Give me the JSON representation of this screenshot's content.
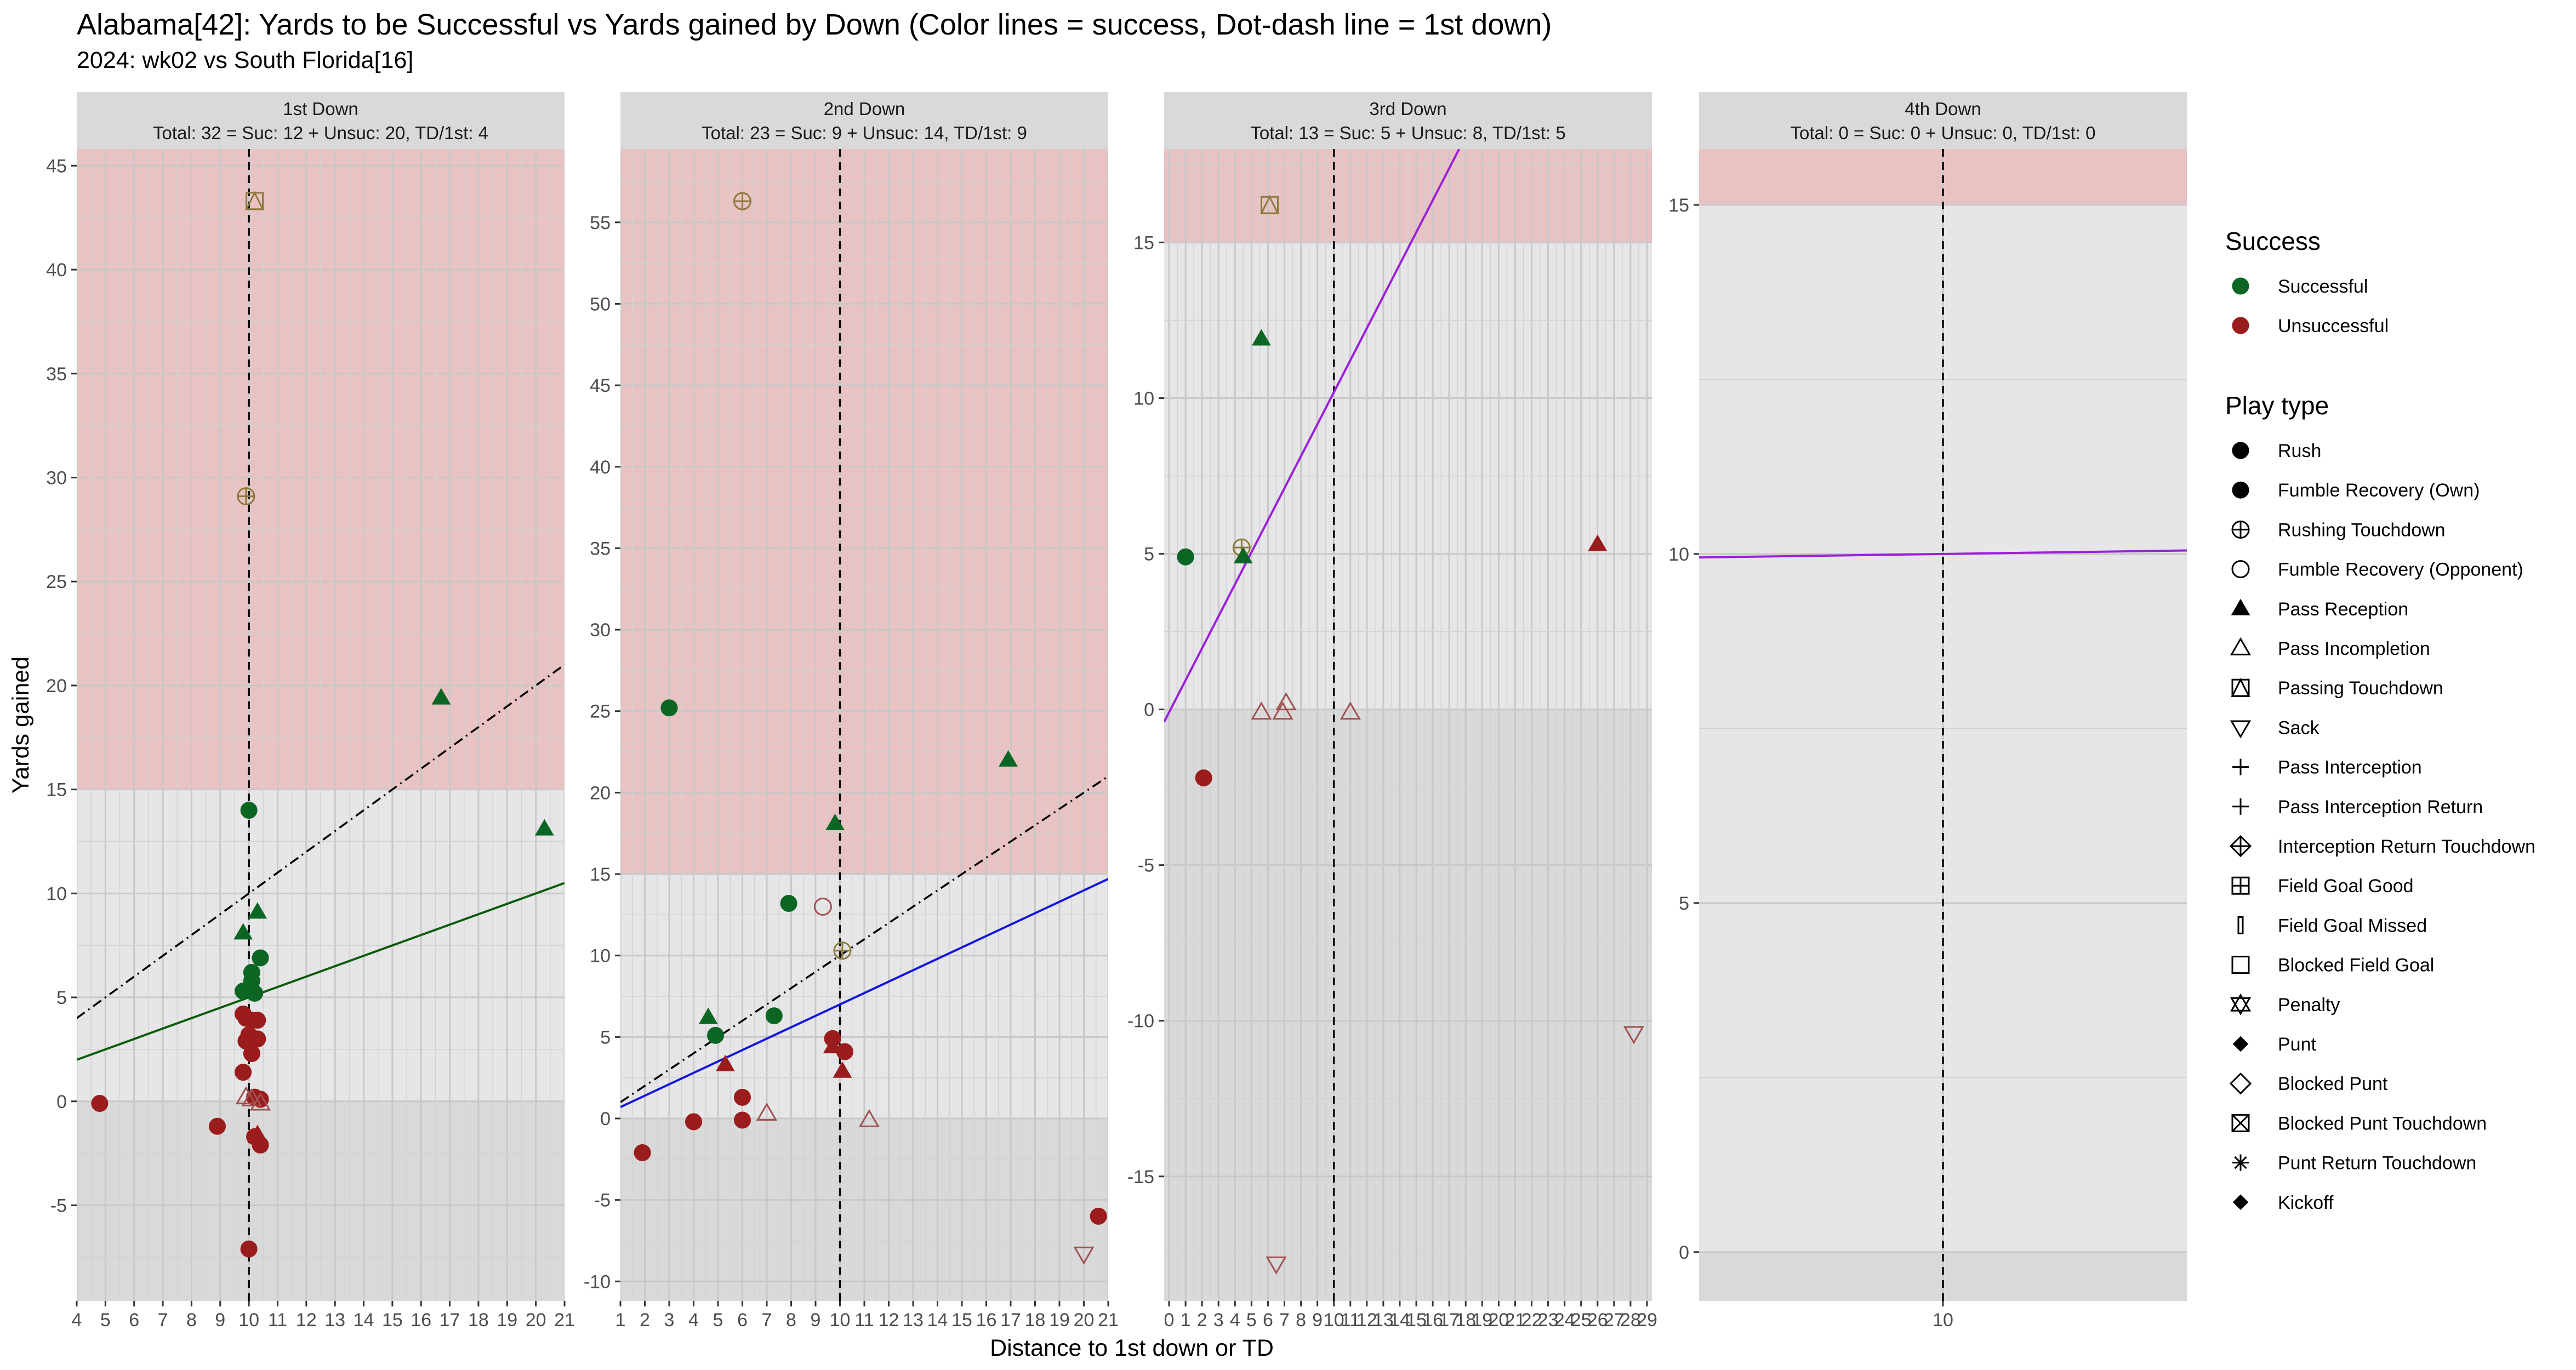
{
  "title": "Alabama[42]: Yards to be Successful vs Yards gained by Down  (Color lines = success, Dot-dash line = 1st down)",
  "subtitle": "2024: wk02 vs South Florida[16]",
  "colors": {
    "successful": "#0b6623",
    "unsuccessful": "#9b1c1c",
    "touchdown_marker": "#8a7a3a",
    "line_1st": "#0b5d0b",
    "line_2nd": "#1414e0",
    "line_3rd": "#9b1fd9",
    "line_4th": "#9b1fd9"
  },
  "chart_data": {
    "type": "scatter",
    "xlabel": "Distance to 1st down or TD",
    "ylabel": "Yards gained",
    "legend": {
      "placement": "right",
      "success_title": "Success",
      "success": [
        {
          "label": "Successful",
          "color": "#0b6623"
        },
        {
          "label": "Unsuccessful",
          "color": "#9b1c1c"
        }
      ],
      "playtype_title": "Play type",
      "playtypes": [
        {
          "label": "Rush",
          "shape": "circle-filled"
        },
        {
          "label": "Fumble Recovery (Own)",
          "shape": "circle-filled"
        },
        {
          "label": "Rushing Touchdown",
          "shape": "circle-plus"
        },
        {
          "label": "Fumble Recovery (Opponent)",
          "shape": "circle-open"
        },
        {
          "label": "Pass Reception",
          "shape": "triangle-filled"
        },
        {
          "label": "Pass Incompletion",
          "shape": "triangle-open"
        },
        {
          "label": "Passing Touchdown",
          "shape": "square-triangle"
        },
        {
          "label": "Sack",
          "shape": "triangle-down-open"
        },
        {
          "label": "Pass Interception",
          "shape": "plus"
        },
        {
          "label": "Pass Interception Return",
          "shape": "plus"
        },
        {
          "label": "Interception Return Touchdown",
          "shape": "diamond-plus"
        },
        {
          "label": "Field Goal Good",
          "shape": "square-plus"
        },
        {
          "label": "Field Goal Missed",
          "shape": "bar-open"
        },
        {
          "label": "Blocked Field Goal",
          "shape": "square-open"
        },
        {
          "label": "Penalty",
          "shape": "star-david"
        },
        {
          "label": "Punt",
          "shape": "diamond-filled"
        },
        {
          "label": "Blocked Punt",
          "shape": "diamond-open"
        },
        {
          "label": "Blocked Punt Touchdown",
          "shape": "square-x"
        },
        {
          "label": "Punt Return Touchdown",
          "shape": "asterisk"
        },
        {
          "label": "Kickoff",
          "shape": "diamond-filled"
        }
      ]
    },
    "panels": [
      {
        "strip_title": "1st Down",
        "strip_summary": "Total: 32 = Suc: 12 + Unsuc: 20, TD/1st: 4",
        "xlim": [
          4,
          21
        ],
        "ylim": [
          -9.6,
          45.8
        ],
        "xticks": [
          4,
          5,
          6,
          7,
          8,
          9,
          10,
          11,
          12,
          13,
          14,
          15,
          16,
          17,
          18,
          19,
          20,
          21
        ],
        "yticks": [
          -5,
          0,
          5,
          10,
          15,
          20,
          25,
          30,
          35,
          40,
          45
        ],
        "first_down_line_x": 10,
        "red_band_min": 15,
        "success_line": {
          "color": "#0b5d0b",
          "points": [
            [
              4,
              2
            ],
            [
              21,
              10.5
            ]
          ]
        },
        "dotdash_line": {
          "points": [
            [
              4,
              4
            ],
            [
              21,
              21
            ]
          ]
        },
        "points": [
          {
            "x": 4.8,
            "y": -0.1,
            "success": false,
            "play": "Rush"
          },
          {
            "x": 8.9,
            "y": -1.2,
            "success": false,
            "play": "Rush"
          },
          {
            "x": 10.0,
            "y": 14.0,
            "success": true,
            "play": "Rush"
          },
          {
            "x": 10.3,
            "y": 9.1,
            "success": true,
            "play": "Pass Reception"
          },
          {
            "x": 9.8,
            "y": 8.1,
            "success": true,
            "play": "Pass Reception"
          },
          {
            "x": 10.4,
            "y": 6.9,
            "success": true,
            "play": "Rush"
          },
          {
            "x": 10.1,
            "y": 6.2,
            "success": true,
            "play": "Rush"
          },
          {
            "x": 10.1,
            "y": 5.8,
            "success": true,
            "play": "Rush"
          },
          {
            "x": 9.8,
            "y": 5.3,
            "success": true,
            "play": "Rush"
          },
          {
            "x": 10.2,
            "y": 5.2,
            "success": true,
            "play": "Rush"
          },
          {
            "x": 16.7,
            "y": 19.4,
            "success": true,
            "play": "Pass Reception"
          },
          {
            "x": 20.3,
            "y": 13.1,
            "success": true,
            "play": "Pass Reception"
          },
          {
            "x": 9.9,
            "y": 29.1,
            "success": true,
            "play": "Rushing Touchdown"
          },
          {
            "x": 10.2,
            "y": 43.3,
            "success": true,
            "play": "Passing Touchdown"
          },
          {
            "x": 9.8,
            "y": 4.2,
            "success": false,
            "play": "Rush"
          },
          {
            "x": 9.9,
            "y": 4.0,
            "success": false,
            "play": "Rush"
          },
          {
            "x": 10.1,
            "y": 3.9,
            "success": false,
            "play": "Rush"
          },
          {
            "x": 10.3,
            "y": 3.9,
            "success": false,
            "play": "Rush"
          },
          {
            "x": 10.0,
            "y": 3.2,
            "success": false,
            "play": "Rush"
          },
          {
            "x": 9.9,
            "y": 2.9,
            "success": false,
            "play": "Rush"
          },
          {
            "x": 10.3,
            "y": 3.0,
            "success": false,
            "play": "Rush"
          },
          {
            "x": 10.1,
            "y": 2.3,
            "success": false,
            "play": "Rush"
          },
          {
            "x": 9.8,
            "y": 1.4,
            "success": false,
            "play": "Rush"
          },
          {
            "x": 10.2,
            "y": 0.2,
            "success": false,
            "play": "Rush"
          },
          {
            "x": 10.4,
            "y": 0.1,
            "success": false,
            "play": "Rush"
          },
          {
            "x": 9.9,
            "y": 0.2,
            "success": false,
            "play": "Pass Incompletion"
          },
          {
            "x": 10.1,
            "y": 0.1,
            "success": false,
            "play": "Pass Incompletion"
          },
          {
            "x": 10.4,
            "y": -0.1,
            "success": false,
            "play": "Pass Incompletion"
          },
          {
            "x": 10.3,
            "y": -1.6,
            "success": false,
            "play": "Pass Reception"
          },
          {
            "x": 10.4,
            "y": -2.1,
            "success": false,
            "play": "Rush"
          },
          {
            "x": 10.0,
            "y": -7.1,
            "success": false,
            "play": "Rush"
          },
          {
            "x": 10.2,
            "y": -1.7,
            "success": false,
            "play": "Rush"
          }
        ]
      },
      {
        "strip_title": "2nd Down",
        "strip_summary": "Total: 23 = Suc: 9 + Unsuc: 14, TD/1st: 9",
        "xlim": [
          1,
          21
        ],
        "ylim": [
          -11.2,
          59.5
        ],
        "xticks": [
          1,
          2,
          3,
          4,
          5,
          6,
          7,
          8,
          9,
          10,
          11,
          12,
          13,
          14,
          15,
          16,
          17,
          18,
          19,
          20,
          21
        ],
        "yticks": [
          -10,
          -5,
          0,
          5,
          10,
          15,
          20,
          25,
          30,
          35,
          40,
          45,
          50,
          55
        ],
        "first_down_line_x": 10,
        "red_band_min": 15,
        "success_line": {
          "color": "#1414e0",
          "points": [
            [
              1,
              0.7
            ],
            [
              21,
              14.7
            ]
          ]
        },
        "dotdash_line": {
          "points": [
            [
              1,
              1
            ],
            [
              21,
              21
            ]
          ]
        },
        "points": [
          {
            "x": 3.0,
            "y": 25.2,
            "success": true,
            "play": "Rush"
          },
          {
            "x": 6.0,
            "y": 56.3,
            "success": true,
            "play": "Rushing Touchdown"
          },
          {
            "x": 16.9,
            "y": 22.0,
            "success": true,
            "play": "Pass Reception"
          },
          {
            "x": 9.8,
            "y": 18.1,
            "success": true,
            "play": "Pass Reception"
          },
          {
            "x": 7.9,
            "y": 13.2,
            "success": true,
            "play": "Rush"
          },
          {
            "x": 10.1,
            "y": 10.3,
            "success": true,
            "play": "Rushing Touchdown"
          },
          {
            "x": 4.6,
            "y": 6.2,
            "success": true,
            "play": "Pass Reception"
          },
          {
            "x": 7.3,
            "y": 6.3,
            "success": true,
            "play": "Rush"
          },
          {
            "x": 4.9,
            "y": 5.1,
            "success": true,
            "play": "Rush"
          },
          {
            "x": 9.3,
            "y": 13.0,
            "success": false,
            "play": "Fumble Recovery (Opponent)"
          },
          {
            "x": 5.3,
            "y": 3.3,
            "success": false,
            "play": "Pass Reception"
          },
          {
            "x": 9.7,
            "y": 4.9,
            "success": false,
            "play": "Rush"
          },
          {
            "x": 9.7,
            "y": 4.4,
            "success": false,
            "play": "Pass Reception"
          },
          {
            "x": 10.2,
            "y": 4.1,
            "success": false,
            "play": "Rush"
          },
          {
            "x": 10.1,
            "y": 2.9,
            "success": false,
            "play": "Pass Reception"
          },
          {
            "x": 6.0,
            "y": 1.3,
            "success": false,
            "play": "Rush"
          },
          {
            "x": 7.0,
            "y": 0.3,
            "success": false,
            "play": "Pass Incompletion"
          },
          {
            "x": 6.0,
            "y": -0.1,
            "success": false,
            "play": "Rush"
          },
          {
            "x": 4.0,
            "y": -0.2,
            "success": false,
            "play": "Rush"
          },
          {
            "x": 11.2,
            "y": -0.1,
            "success": false,
            "play": "Pass Incompletion"
          },
          {
            "x": 1.9,
            "y": -2.1,
            "success": false,
            "play": "Rush"
          },
          {
            "x": 20.6,
            "y": -6.0,
            "success": false,
            "play": "Rush"
          },
          {
            "x": 20.0,
            "y": -8.3,
            "success": false,
            "play": "Sack"
          }
        ]
      },
      {
        "strip_title": "3rd Down",
        "strip_summary": "Total: 13 = Suc: 5 + Unsuc: 8, TD/1st: 5",
        "xlim": [
          -0.3,
          29.3
        ],
        "ylim": [
          -19.0,
          18.0
        ],
        "xticks": [
          0,
          1,
          2,
          3,
          4,
          5,
          6,
          7,
          8,
          9,
          10,
          11,
          12,
          13,
          14,
          15,
          16,
          17,
          18,
          19,
          20,
          21,
          22,
          23,
          24,
          25,
          26,
          27,
          28,
          29
        ],
        "yticks": [
          -15,
          -10,
          -5,
          0,
          5,
          10,
          15
        ],
        "first_down_line_x": 10,
        "red_band_min": 15,
        "success_line": {
          "color": "#9b1fd9",
          "points": [
            [
              -0.3,
              -0.4
            ],
            [
              17.6,
              18.0
            ]
          ]
        },
        "points": [
          {
            "x": 5.6,
            "y": 11.9,
            "success": true,
            "play": "Pass Reception"
          },
          {
            "x": 6.1,
            "y": 16.2,
            "success": true,
            "play": "Passing Touchdown"
          },
          {
            "x": 1.0,
            "y": 4.9,
            "success": true,
            "play": "Rush"
          },
          {
            "x": 4.4,
            "y": 5.2,
            "success": true,
            "play": "Rushing Touchdown"
          },
          {
            "x": 4.5,
            "y": 4.9,
            "success": true,
            "play": "Pass Reception"
          },
          {
            "x": 26.0,
            "y": 5.3,
            "success": false,
            "play": "Pass Reception"
          },
          {
            "x": 2.1,
            "y": -2.2,
            "success": false,
            "play": "Rush"
          },
          {
            "x": 5.6,
            "y": -0.1,
            "success": false,
            "play": "Pass Incompletion"
          },
          {
            "x": 6.9,
            "y": -0.1,
            "success": false,
            "play": "Pass Incompletion"
          },
          {
            "x": 7.1,
            "y": 0.2,
            "success": false,
            "play": "Pass Incompletion"
          },
          {
            "x": 11.0,
            "y": -0.1,
            "success": false,
            "play": "Pass Incompletion"
          },
          {
            "x": 6.5,
            "y": -17.8,
            "success": false,
            "play": "Sack"
          },
          {
            "x": 28.2,
            "y": -10.4,
            "success": false,
            "play": "Sack"
          }
        ]
      },
      {
        "strip_title": "4th Down",
        "strip_summary": "Total: 0 = Suc: 0 + Unsuc: 0, TD/1st: 0",
        "xlim": [
          4,
          16
        ],
        "ylim": [
          -0.7,
          15.8
        ],
        "xticks": [
          10
        ],
        "yticks": [
          0,
          5,
          10,
          15
        ],
        "first_down_line_x": 10,
        "red_band_min": 15,
        "success_line": {
          "color": "#9b1fd9",
          "points": [
            [
              4,
              9.95
            ],
            [
              16,
              10.05
            ]
          ]
        },
        "points": []
      }
    ]
  }
}
